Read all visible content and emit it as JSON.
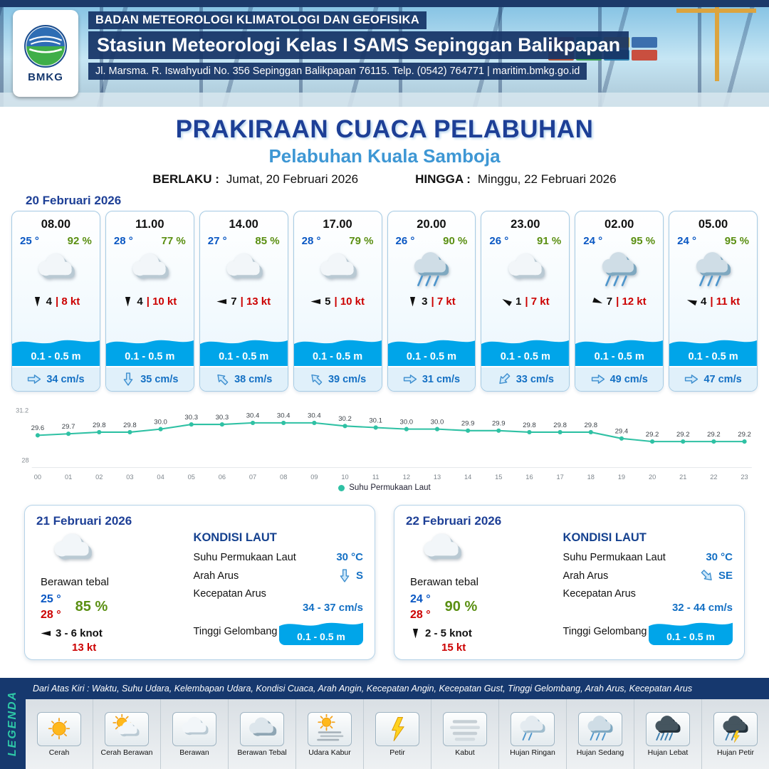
{
  "header": {
    "logo_text": "BMKG",
    "agency": "BADAN METEOROLOGI KLIMATOLOGI DAN GEOFISIKA",
    "station": "Stasiun Meteorologi Kelas I SAMS Sepinggan Balikpapan",
    "address": "Jl. Marsma. R. Iswahyudi No. 356 Sepinggan Balikpapan 76115. Telp. (0542) 764771 | maritim.bmkg.go.id"
  },
  "title": {
    "main": "PRAKIRAAN CUACA PELABUHAN",
    "sub": "Pelabuhan Kuala Samboja",
    "valid_label": "BERLAKU :",
    "valid_value": "Jumat, 20 Februari 2026",
    "until_label": "HINGGA :",
    "until_value": "Minggu, 22 Februari 2026"
  },
  "forecast": {
    "date_label": "20 Februari 2026",
    "cards": [
      {
        "time": "08.00",
        "temp": "25 °",
        "rh": "92 %",
        "icon": "cloud",
        "wind_rot": 90,
        "wind_speed": "4",
        "wind_gust": "| 8 kt",
        "wave": "0.1 - 0.5 m",
        "current_rot": 0,
        "current": "34 cm/s"
      },
      {
        "time": "11.00",
        "temp": "28 °",
        "rh": "77 %",
        "icon": "cloud",
        "wind_rot": 90,
        "wind_speed": "4",
        "wind_gust": "| 10 kt",
        "wave": "0.1 - 0.5 m",
        "current_rot": 90,
        "current": "35 cm/s"
      },
      {
        "time": "14.00",
        "temp": "27 °",
        "rh": "85 %",
        "icon": "cloud",
        "wind_rot": 180,
        "wind_speed": "7",
        "wind_gust": "| 13 kt",
        "wave": "0.1 - 0.5 m",
        "current_rot": 225,
        "current": "38 cm/s"
      },
      {
        "time": "17.00",
        "temp": "28 °",
        "rh": "79 %",
        "icon": "cloud",
        "wind_rot": 180,
        "wind_speed": "5",
        "wind_gust": "| 10 kt",
        "wave": "0.1 - 0.5 m",
        "current_rot": 225,
        "current": "39 cm/s"
      },
      {
        "time": "20.00",
        "temp": "26 °",
        "rh": "90 %",
        "icon": "rain-med",
        "wind_rot": 90,
        "wind_speed": "3",
        "wind_gust": "| 7 kt",
        "wave": "0.1 - 0.5 m",
        "current_rot": 0,
        "current": "31 cm/s"
      },
      {
        "time": "23.00",
        "temp": "26 °",
        "rh": "91 %",
        "icon": "cloud",
        "wind_rot": 210,
        "wind_speed": "1",
        "wind_gust": "| 7 kt",
        "wave": "0.1 - 0.5 m",
        "current_rot": 135,
        "current": "33 cm/s"
      },
      {
        "time": "02.00",
        "temp": "24 °",
        "rh": "95 %",
        "icon": "rain-med",
        "wind_rot": 20,
        "wind_speed": "7",
        "wind_gust": "| 12 kt",
        "wave": "0.1 - 0.5 m",
        "current_rot": 0,
        "current": "49 cm/s"
      },
      {
        "time": "05.00",
        "temp": "24 °",
        "rh": "95 %",
        "icon": "rain-med",
        "wind_rot": 200,
        "wind_speed": "4",
        "wind_gust": "| 11 kt",
        "wave": "0.1 - 0.5 m",
        "current_rot": 0,
        "current": "47 cm/s"
      }
    ]
  },
  "chart_data": {
    "type": "line",
    "title": "Suhu Permukaan Laut",
    "x": [
      "00",
      "01",
      "02",
      "03",
      "04",
      "05",
      "06",
      "07",
      "08",
      "09",
      "10",
      "11",
      "12",
      "13",
      "14",
      "15",
      "16",
      "17",
      "18",
      "19",
      "20",
      "21",
      "22",
      "23"
    ],
    "series": [
      {
        "name": "Suhu Permukaan Laut",
        "values": [
          29.6,
          29.7,
          29.8,
          29.8,
          30.0,
          30.3,
          30.3,
          30.4,
          30.4,
          30.4,
          30.2,
          30.1,
          30.0,
          30.0,
          29.9,
          29.9,
          29.8,
          29.8,
          29.8,
          29.4,
          29.2,
          29.2,
          29.2,
          29.2
        ]
      }
    ],
    "ylim": [
      28,
      31.2
    ],
    "line_color": "#2fc1a4",
    "legend_position": "bottom"
  },
  "days": [
    {
      "date": "21 Februari 2026",
      "icon": "cloud",
      "condition": "Berawan tebal",
      "temp_min": "25 °",
      "temp_max": "28 °",
      "rh": "85 %",
      "wind_rot": 180,
      "wind": "3 - 6 knot",
      "gust": "13 kt",
      "sea": {
        "heading": "KONDISI LAUT",
        "sst_label": "Suhu Permukaan Laut",
        "sst": "30 °C",
        "dir_label": "Arah Arus",
        "dir_rot": 90,
        "dir": "S",
        "speed_label": "Kecepatan Arus",
        "speed": "34 - 37 cm/s",
        "wave_label": "Tinggi Gelombang",
        "wave": "0.1 - 0.5 m"
      }
    },
    {
      "date": "22 Februari 2026",
      "icon": "cloud",
      "condition": "Berawan tebal",
      "temp_min": "24 °",
      "temp_max": "28 °",
      "rh": "90 %",
      "wind_rot": 90,
      "wind": "2 - 5 knot",
      "gust": "15 kt",
      "sea": {
        "heading": "KONDISI LAUT",
        "sst_label": "Suhu Permukaan Laut",
        "sst": "30 °C",
        "dir_label": "Arah Arus",
        "dir_rot": 45,
        "dir": "SE",
        "speed_label": "Kecepatan Arus",
        "speed": "32 - 44 cm/s",
        "wave_label": "Tinggi Gelombang",
        "wave": "0.1 - 0.5 m"
      }
    }
  ],
  "footer": {
    "legend_title": "LEGENDA",
    "note": "Dari Atas Kiri : Waktu, Suhu Udara, Kelembapan Udara, Kondisi Cuaca, Arah Angin, Kecepatan Angin, Kecepatan Gust, Tinggi Gelombang, Arah Arus, Kecepatan Arus",
    "items": [
      {
        "label": "Cerah",
        "icon": "sun"
      },
      {
        "label": "Cerah Berawan",
        "icon": "sun-cloud"
      },
      {
        "label": "Berawan",
        "icon": "cloud"
      },
      {
        "label": "Berawan Tebal",
        "icon": "cloud-thick"
      },
      {
        "label": "Udara Kabur",
        "icon": "haze"
      },
      {
        "label": "Petir",
        "icon": "bolt"
      },
      {
        "label": "Kabut",
        "icon": "fog"
      },
      {
        "label": "Hujan Ringan",
        "icon": "rain-light"
      },
      {
        "label": "Hujan Sedang",
        "icon": "rain-med"
      },
      {
        "label": "Hujan Lebat",
        "icon": "rain-heavy"
      },
      {
        "label": "Hujan Petir",
        "icon": "rain-thunder"
      }
    ]
  },
  "colors": {
    "accent_navy": "#16386e",
    "title_blue": "#1d3f96",
    "port_blue": "#3e97d4",
    "temp_blue": "#0957c3",
    "humidity_green": "#5a8f12",
    "alert_red": "#cc0000",
    "wave_blue": "#00a5e9",
    "current_blue": "#1470c4",
    "sst_line_teal": "#2fc1a4"
  }
}
